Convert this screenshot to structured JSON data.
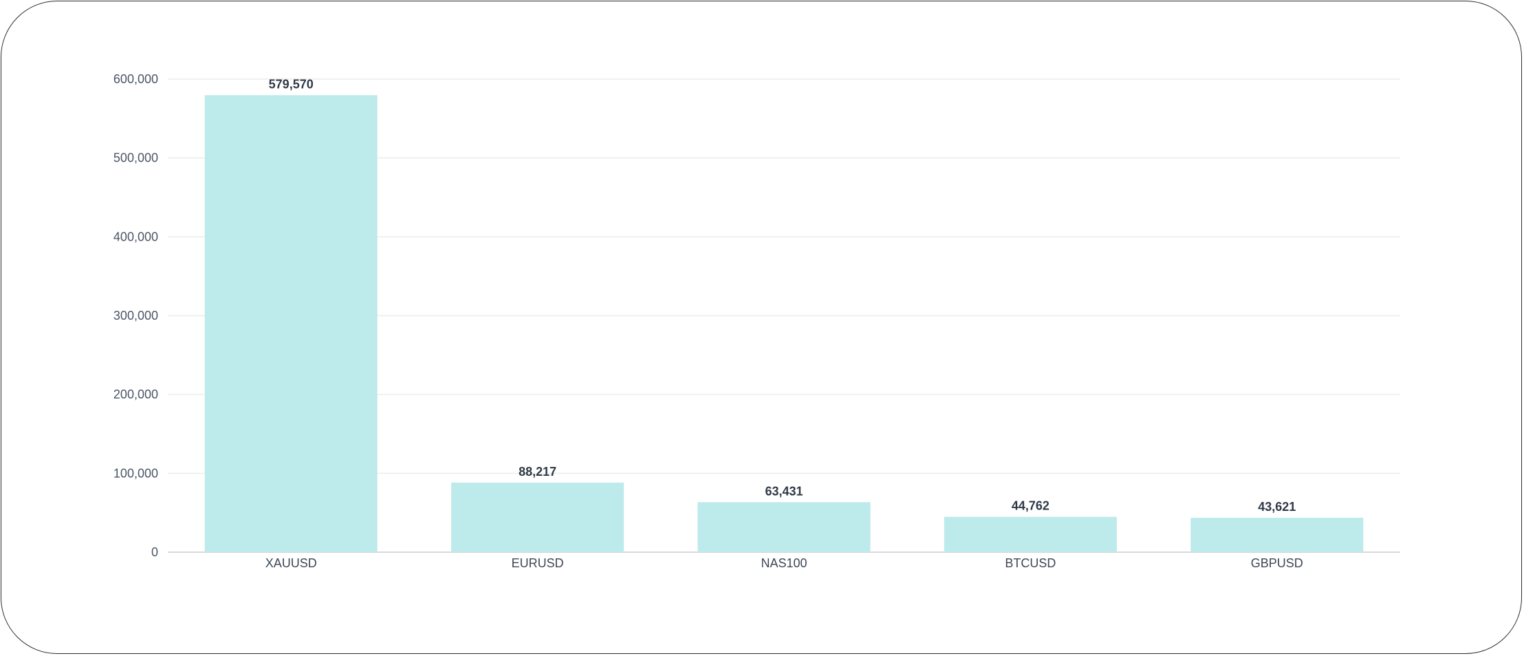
{
  "chart_data": {
    "type": "bar",
    "categories": [
      "XAUUSD",
      "EURUSD",
      "NAS100",
      "BTCUSD",
      "GBPUSD"
    ],
    "values": [
      579570,
      88217,
      63431,
      44762,
      43621
    ],
    "value_labels": [
      "579,570",
      "88,217",
      "63,431",
      "44,762",
      "43,621"
    ],
    "yticks": [
      0,
      100000,
      200000,
      300000,
      400000,
      500000,
      600000
    ],
    "ytick_labels": [
      "0",
      "100,000",
      "200,000",
      "300,000",
      "400,000",
      "500,000",
      "600,000"
    ],
    "ylim": [
      0,
      600000
    ],
    "grid": true,
    "legend": "none",
    "colors": {
      "bar": "#bdeaea",
      "grid": "#ececec",
      "axis": "#d9d9d9"
    }
  }
}
